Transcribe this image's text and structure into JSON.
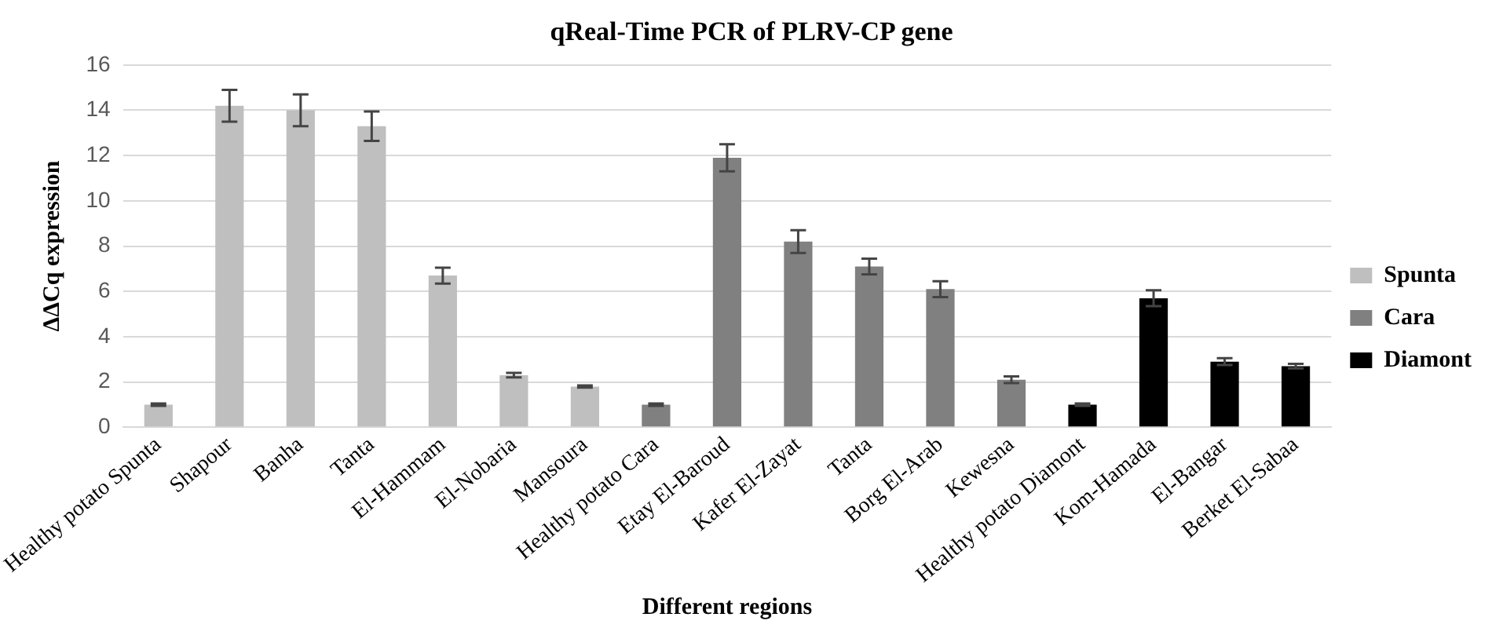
{
  "chart_data": {
    "type": "bar",
    "title": "qReal-Time PCR of PLRV-CP gene",
    "xlabel": "Different regions",
    "ylabel": "ΔΔCq expression",
    "categories": [
      "Healthy potato Spunta",
      "Shapour",
      "Banha",
      "Tanta",
      "El-Hammam",
      "El-Nobaria",
      "Mansoura",
      "Healthy potato Cara",
      "Etay El-Baroud",
      "Kafer El-Zayat",
      "Tanta",
      "Borg El-Arab",
      "Kewesna",
      "Healthy potato Diamont",
      "Kom-Hamada",
      "El-Bangar",
      "Berket El-Sabaa"
    ],
    "series": [
      {
        "name": "Spunta",
        "color": "#bfbfbf",
        "values": [
          1.0,
          14.2,
          14.0,
          13.3,
          6.7,
          2.3,
          1.8,
          null,
          null,
          null,
          null,
          null,
          null,
          null,
          null,
          null,
          null
        ],
        "errors": [
          0.05,
          0.7,
          0.7,
          0.65,
          0.35,
          0.1,
          0.05,
          null,
          null,
          null,
          null,
          null,
          null,
          null,
          null,
          null,
          null
        ]
      },
      {
        "name": "Cara",
        "color": "#808080",
        "values": [
          null,
          null,
          null,
          null,
          null,
          null,
          null,
          1.0,
          11.9,
          8.2,
          7.1,
          6.1,
          2.1,
          null,
          null,
          null,
          null
        ],
        "errors": [
          null,
          null,
          null,
          null,
          null,
          null,
          null,
          0.05,
          0.6,
          0.5,
          0.35,
          0.35,
          0.15,
          null,
          null,
          null,
          null
        ]
      },
      {
        "name": "Diamont",
        "color": "#000000",
        "values": [
          null,
          null,
          null,
          null,
          null,
          null,
          null,
          null,
          null,
          null,
          null,
          null,
          null,
          1.0,
          5.7,
          2.9,
          2.7
        ],
        "errors": [
          null,
          null,
          null,
          null,
          null,
          null,
          null,
          null,
          null,
          null,
          null,
          null,
          null,
          0.05,
          0.35,
          0.15,
          0.1
        ]
      }
    ],
    "ylim": [
      0,
      16
    ],
    "yticks": [
      0,
      2,
      4,
      6,
      8,
      10,
      12,
      14,
      16
    ],
    "grid": "y",
    "legend": "right"
  }
}
